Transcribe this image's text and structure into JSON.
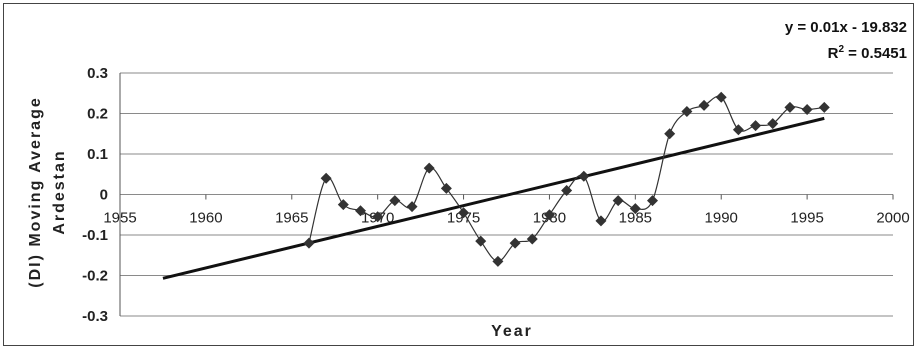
{
  "chart_data": {
    "type": "scatter",
    "xlabel": "Year",
    "ylabel_lines": [
      "(DI) Moving Average",
      "Ardestan"
    ],
    "xlim": [
      1955,
      2000
    ],
    "ylim": [
      -0.3,
      0.3
    ],
    "x_ticks": [
      "1955",
      "1960",
      "1965",
      "1970",
      "1975",
      "1980",
      "1985",
      "1990",
      "1995",
      "2000"
    ],
    "y_ticks": [
      "0.3",
      "0.2",
      "0.1",
      "0",
      "-0.1",
      "-0.2",
      "-0.3"
    ],
    "grid": "horizontal",
    "legend": "none",
    "series_color": "#333333",
    "series": [
      {
        "x": [
          1966,
          1967,
          1968,
          1969,
          1970,
          1971,
          1972,
          1973,
          1974,
          1975,
          1976,
          1977,
          1978,
          1979,
          1980,
          1981,
          1982,
          1983,
          1984,
          1985,
          1986,
          1987,
          1988,
          1989,
          1990,
          1991,
          1992,
          1993,
          1994,
          1995,
          1996
        ],
        "y": [
          -0.12,
          0.04,
          -0.025,
          -0.04,
          -0.055,
          -0.015,
          -0.03,
          0.065,
          0.015,
          -0.045,
          -0.115,
          -0.165,
          -0.12,
          -0.11,
          -0.05,
          0.01,
          0.045,
          -0.065,
          -0.015,
          -0.035,
          -0.015,
          0.15,
          0.205,
          0.22,
          0.24,
          0.16,
          0.17,
          0.175,
          0.215,
          0.21,
          0.215
        ]
      }
    ],
    "trendline": {
      "x": [
        1957.5,
        1996
      ],
      "y": [
        -0.207,
        0.188
      ],
      "equation": "y = 0.01x - 19.832",
      "r2_label": "R",
      "r2_sup": "2",
      "r2_value": " = 0.5451"
    }
  }
}
